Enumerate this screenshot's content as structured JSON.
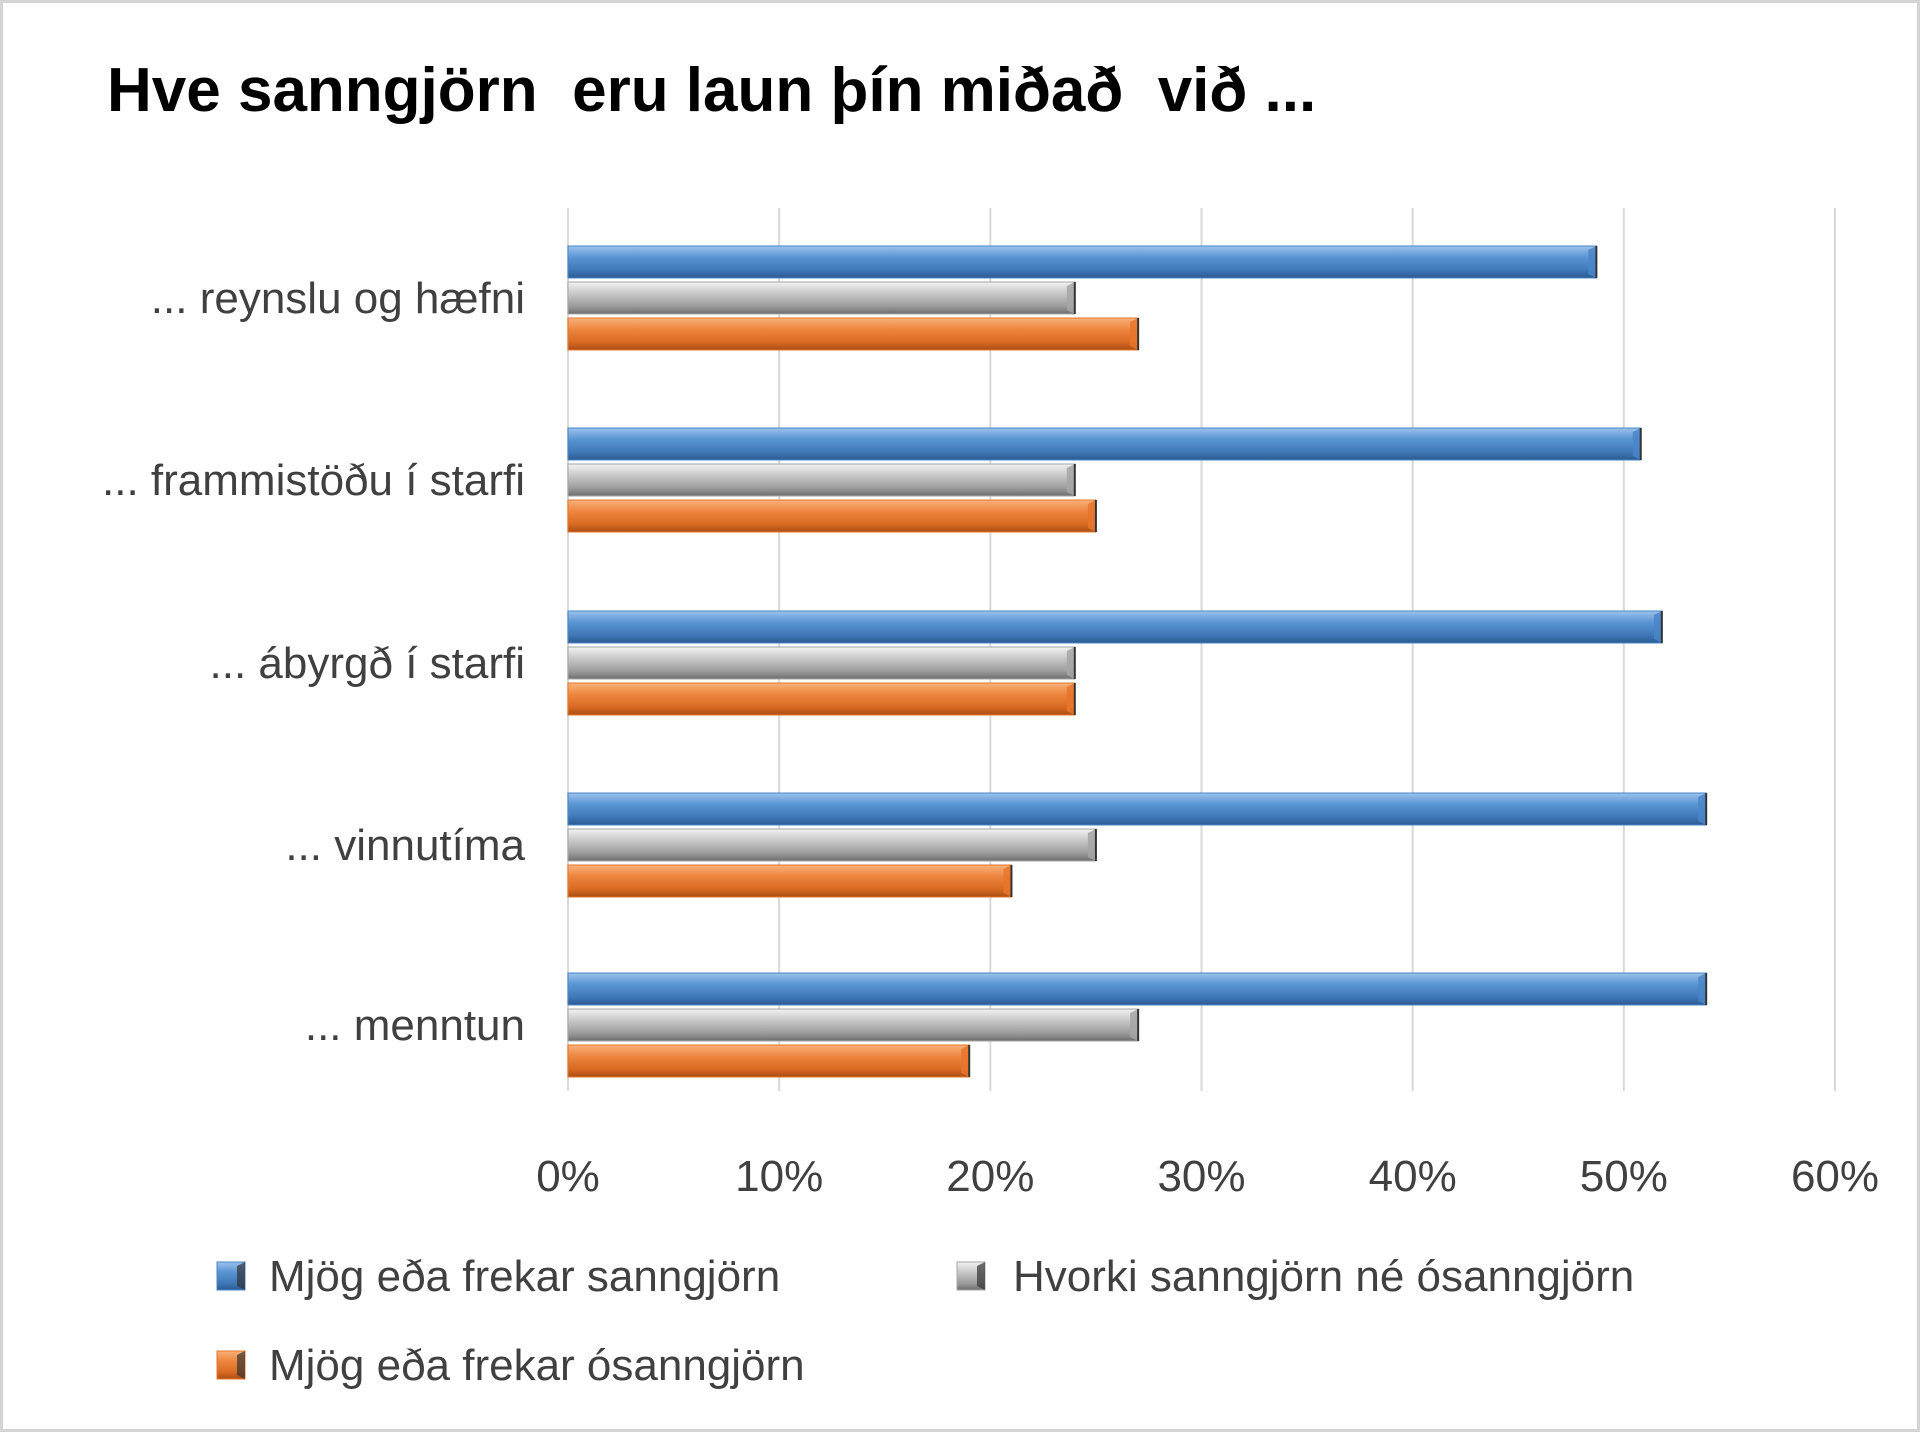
{
  "chart_data": {
    "type": "bar",
    "orientation": "horizontal",
    "title": "Hve sanngjörn  eru laun þín miðað  við ...",
    "categories": [
      "... reynslu og hæfni",
      "... frammistöðu í starfi",
      "... ábyrgð í starfi",
      "... vinnutíma",
      "... menntun"
    ],
    "series": [
      {
        "name": "Mjög eða frekar sanngjörn",
        "color": "#4a86c8",
        "values": [
          48.7,
          50.8,
          51.8,
          53.9,
          53.9
        ]
      },
      {
        "name": "Hvorki sanngjörn né ósanngjörn",
        "color": "#a6a6a6",
        "values": [
          24.0,
          24.0,
          24.0,
          25.0,
          27.0
        ]
      },
      {
        "name": "Mjög eða frekar ósanngjörn",
        "color": "#e8762b",
        "values": [
          27.0,
          25.0,
          24.0,
          21.0,
          19.0
        ]
      }
    ],
    "xlim": [
      0,
      60
    ],
    "ticks": [
      "0%",
      "10%",
      "20%",
      "30%",
      "40%",
      "50%",
      "60%"
    ],
    "grid": true,
    "legend_position": "bottom"
  }
}
